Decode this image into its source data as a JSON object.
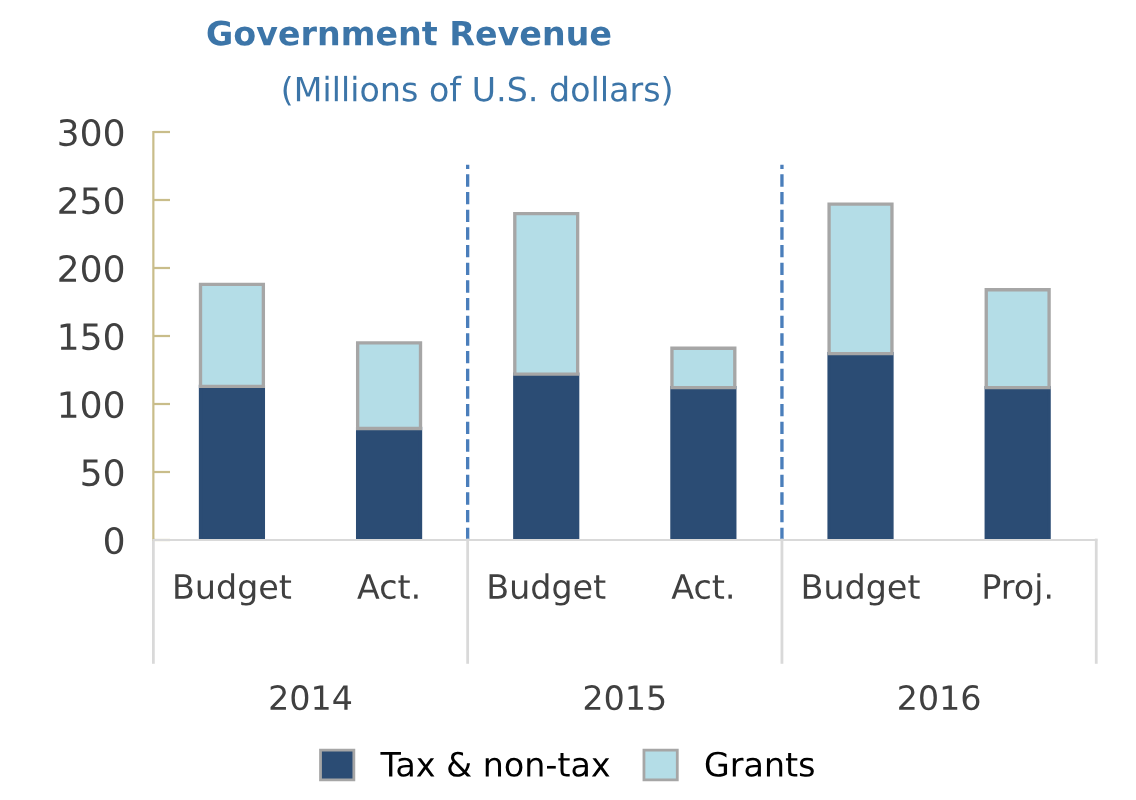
{
  "chart_data": {
    "type": "bar",
    "title": "Government Revenue",
    "subtitle": "(Millions of U.S. dollars)",
    "categories": [
      "Budget",
      "Act.",
      "Budget",
      "Act.",
      "Budget",
      "Proj."
    ],
    "series": [
      {
        "name": "Tax & non-tax",
        "color": "#2b4c74",
        "values": [
          113,
          82,
          122,
          112,
          137,
          112
        ]
      },
      {
        "name": "Grants",
        "color": "#b4dde7",
        "values": [
          75,
          63,
          118,
          29,
          110,
          72
        ]
      }
    ],
    "stacked": true,
    "ylim": [
      0,
      300
    ],
    "yticks": [
      0,
      50,
      100,
      150,
      200,
      250,
      300
    ],
    "grid": false,
    "legend": "bottom",
    "annotations": [
      "2014",
      "2015",
      "2016"
    ]
  }
}
